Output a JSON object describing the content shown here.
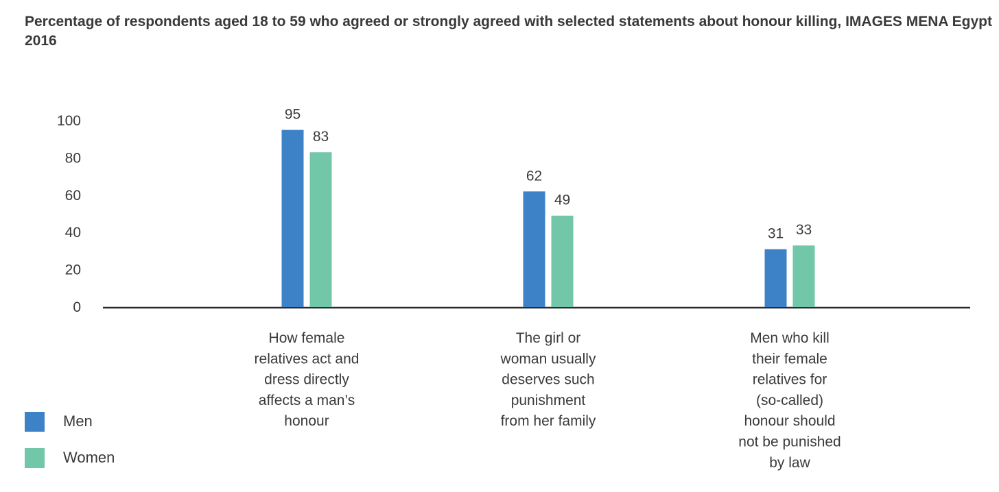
{
  "chart_data": {
    "type": "bar",
    "title": "Percentage of respondents aged 18 to 59 who agreed or strongly agreed with selected statements about honour killing, IMAGES MENA Egypt 2016",
    "categories": [
      [
        "How female",
        "relatives act and",
        "dress directly",
        "affects a man’s",
        "honour"
      ],
      [
        "The girl or",
        "woman usually",
        "deserves such",
        "punishment",
        "from her family"
      ],
      [
        "Men who kill",
        "their female",
        "relatives for",
        "(so-called)",
        "honour should",
        "not be punished",
        "by law"
      ]
    ],
    "series": [
      {
        "name": "Men",
        "values": [
          95,
          62,
          31
        ],
        "color": "#3d82c6"
      },
      {
        "name": "Women",
        "values": [
          83,
          49,
          33
        ],
        "color": "#72c7a9"
      }
    ],
    "yticks": [
      "0",
      "20",
      "40",
      "60",
      "80",
      "100"
    ],
    "ylim": [
      0,
      100
    ],
    "xlabel": "",
    "ylabel": "",
    "grid": false,
    "legend_position": "bottom-left"
  }
}
